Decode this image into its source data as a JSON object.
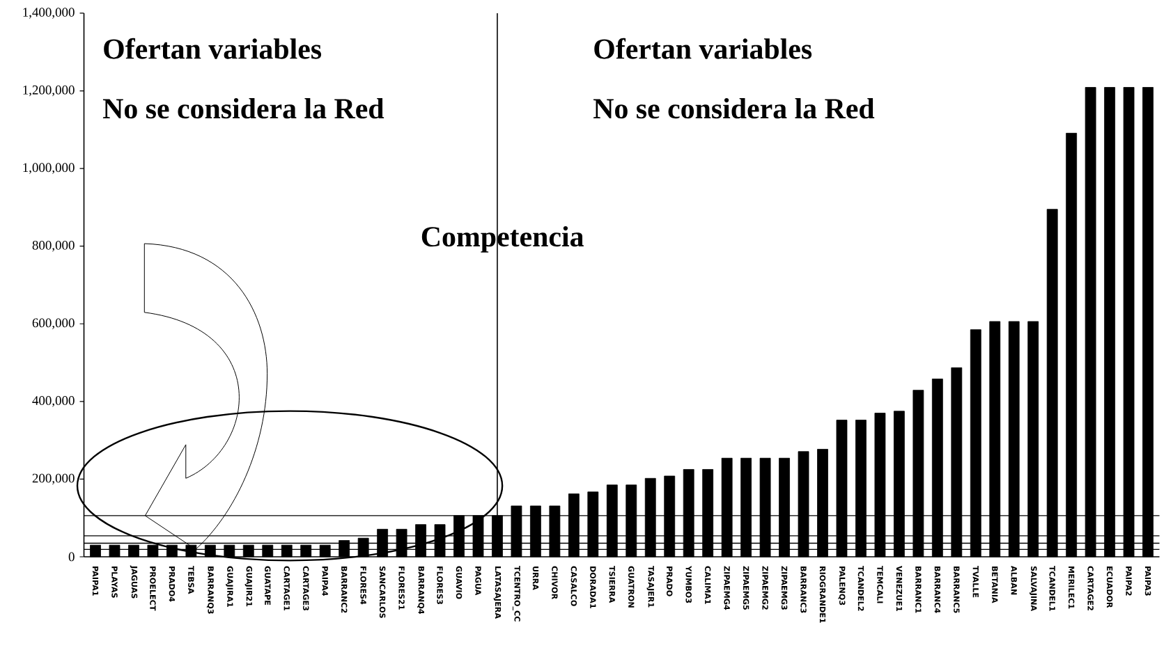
{
  "chart_data": {
    "type": "bar",
    "color": "#000000",
    "categories": [
      "PAIPA1",
      "PLAYAS",
      "JAGUAS",
      "PROELECT",
      "PRADO4",
      "TEBSA",
      "BARRANQ3",
      "GUAJIRA1",
      "GUAJIR21",
      "GUATAPE",
      "CARTAGE1",
      "CARTAGE3",
      "PAIPA4",
      "BARRANC2",
      "FLORES4",
      "SANCARLOS",
      "FLORES21",
      "BARRANQ4",
      "FLORES3",
      "GUAVIO",
      "PAGUA",
      "LATASAJERA",
      "TCENTRO_CC",
      "URRA",
      "CHIVOR",
      "CASALCO",
      "DORADA1",
      "TSIERRA",
      "GUATRON",
      "TASAJER1",
      "PRADO",
      "YUMBO3",
      "CALIMA1",
      "ZIPAEMG4",
      "ZIPAEMG5",
      "ZIPAEMG2",
      "ZIPAEMG3",
      "BARRANC3",
      "RIOGRANDE1",
      "PALENQ3",
      "TCANDEL2",
      "TEMCALI",
      "VENEZUE1",
      "BARRANC1",
      "BARRANC4",
      "BARRANC5",
      "TVALLE",
      "BETANIA",
      "ALBAN",
      "SALVAJINA",
      "TCANDEL1",
      "MERILEC1",
      "CARTAGE2",
      "ECUADOR",
      "PAIPA2",
      "PAIPA3"
    ],
    "values": [
      30000,
      30000,
      30000,
      30000,
      30000,
      30000,
      30000,
      30000,
      30000,
      30000,
      30000,
      30000,
      30000,
      42000,
      48000,
      71000,
      71000,
      83000,
      83000,
      106000,
      106000,
      106000,
      131000,
      131000,
      131000,
      162000,
      167000,
      185000,
      185000,
      202000,
      208000,
      225000,
      225000,
      254000,
      254000,
      254000,
      254000,
      271000,
      277000,
      352000,
      352000,
      370000,
      375000,
      429000,
      458000,
      487000,
      585000,
      606000,
      606000,
      606000,
      895000,
      1091000,
      1209000,
      1209000,
      1209000,
      1209000
    ],
    "ylim": [
      0,
      1400000
    ],
    "yticks": [
      0,
      {
        "value": 200000,
        "label": "200,000"
      },
      {
        "value": 400000,
        "label": "400,000"
      },
      {
        "value": 600000,
        "label": "600,000"
      },
      {
        "value": 800000,
        "label": "800,000"
      },
      {
        "value": 1000000,
        "label": "1,000,000"
      },
      {
        "value": 1200000,
        "label": "1,200,000"
      },
      {
        "value": 1400000,
        "label": "1,400,000"
      }
    ],
    "ref_lines": [
      {
        "axis": "y",
        "value": 106000
      },
      {
        "axis": "y",
        "value": 54000
      },
      {
        "axis": "y",
        "value": 35000
      },
      {
        "axis": "y",
        "value": 19000
      },
      {
        "axis": "x",
        "value": "LATASAJERA"
      }
    ],
    "annotations": [
      "Ofertan variables",
      "No se considera la Red",
      "Ofertan variables",
      "No se considera la Red",
      "Competencia"
    ]
  }
}
